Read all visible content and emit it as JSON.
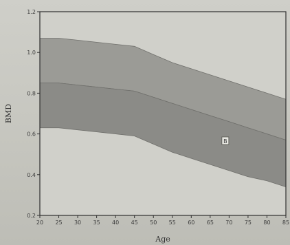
{
  "chart_data": {
    "type": "area",
    "title": "",
    "xlabel": "Age",
    "ylabel": "BMD",
    "x": [
      20,
      25,
      30,
      35,
      40,
      45,
      50,
      55,
      60,
      65,
      70,
      75,
      80,
      85
    ],
    "xticks": [
      "20",
      "25",
      "30",
      "35",
      "40",
      "45",
      "50",
      "55",
      "60",
      "65",
      "70",
      "75",
      "80",
      "85"
    ],
    "yticks": [
      "0.2",
      "0.4",
      "0.6",
      "0.8",
      "1.0",
      "1.2"
    ],
    "xlim": [
      20,
      85
    ],
    "ylim": [
      0.2,
      1.2
    ],
    "grid": false,
    "bands": [
      {
        "upper": [
          1.07,
          1.07,
          1.06,
          1.05,
          1.04,
          1.03,
          0.99,
          0.95,
          0.92,
          0.89,
          0.86,
          0.83,
          0.8,
          0.77
        ],
        "lower": [
          0.85,
          0.85,
          0.84,
          0.83,
          0.82,
          0.81,
          0.78,
          0.75,
          0.72,
          0.69,
          0.66,
          0.63,
          0.6,
          0.57
        ],
        "color": "#9b9b96"
      },
      {
        "upper": [
          0.85,
          0.85,
          0.84,
          0.83,
          0.82,
          0.81,
          0.78,
          0.75,
          0.72,
          0.69,
          0.66,
          0.63,
          0.6,
          0.57
        ],
        "lower": [
          0.63,
          0.63,
          0.62,
          0.61,
          0.6,
          0.59,
          0.55,
          0.51,
          0.48,
          0.45,
          0.42,
          0.39,
          0.37,
          0.34
        ],
        "color": "#8b8b87"
      }
    ],
    "annotations": [
      {
        "text": "B",
        "x": 69,
        "y": 0.565
      }
    ],
    "colors": {
      "axis": "#2f2f2f",
      "plot_background": "#d0d0ca",
      "band_edge": "#6f6f6b",
      "marker_face": "#e6e6e0"
    }
  }
}
